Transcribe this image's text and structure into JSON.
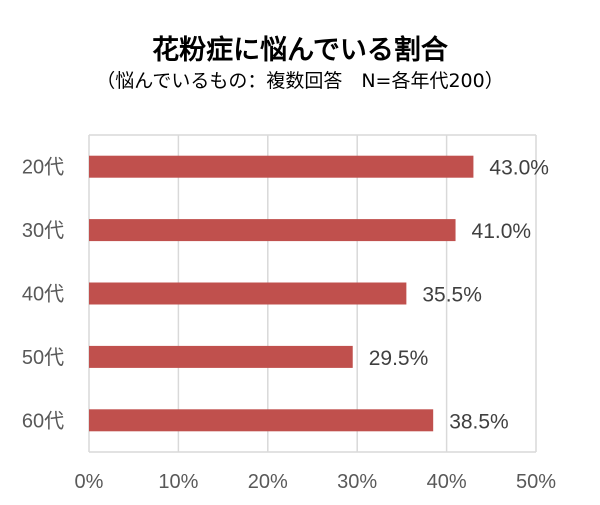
{
  "chart_data": {
    "type": "bar",
    "orientation": "horizontal",
    "title": "花粉症に悩んでいる割合",
    "subtitle": "（悩んでいるもの：複数回答　N=各年代200）",
    "categories": [
      "20代",
      "30代",
      "40代",
      "50代",
      "60代"
    ],
    "values": [
      43.0,
      41.0,
      35.5,
      29.5,
      38.5
    ],
    "data_labels": [
      "43.0%",
      "41.0%",
      "35.5%",
      "29.5%",
      "38.5%"
    ],
    "xlim": [
      0,
      50
    ],
    "x_ticks": [
      "0%",
      "10%",
      "20%",
      "30%",
      "40%",
      "50%"
    ],
    "grid": true,
    "bar_color": "#C0504D"
  }
}
